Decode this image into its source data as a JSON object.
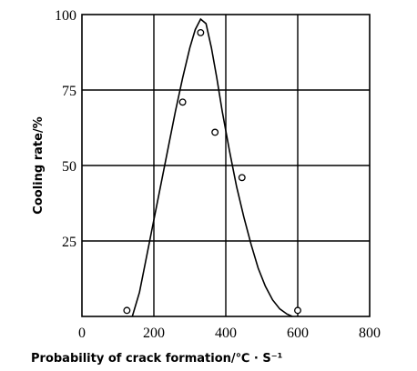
{
  "chart_data": {
    "type": "scatter",
    "xlabel": "Probability of crack formation/℃ · S⁻¹",
    "ylabel": "Cooling rate/%",
    "xlim": [
      0,
      800
    ],
    "ylim": [
      0,
      100
    ],
    "x_ticks": [
      "0",
      "200",
      "400",
      "600",
      "800"
    ],
    "y_ticks": [
      "25",
      "50",
      "75",
      "100"
    ],
    "grid": true,
    "series": [
      {
        "kind": "points",
        "x": [
          125,
          280,
          330,
          370,
          445,
          600
        ],
        "y": [
          2,
          71,
          94,
          61,
          46,
          2
        ]
      },
      {
        "kind": "curve",
        "x": [
          140,
          160,
          180,
          200,
          220,
          240,
          260,
          280,
          300,
          315,
          330,
          345,
          360,
          375,
          390,
          410,
          430,
          450,
          470,
          490,
          510,
          530,
          550,
          570,
          585
        ],
        "y": [
          0,
          8,
          20,
          32,
          44,
          56,
          68,
          79,
          89,
          95,
          98.5,
          97,
          89,
          79,
          68,
          55,
          43,
          33,
          24,
          16,
          10,
          5.5,
          2.5,
          0.8,
          0
        ]
      }
    ]
  }
}
